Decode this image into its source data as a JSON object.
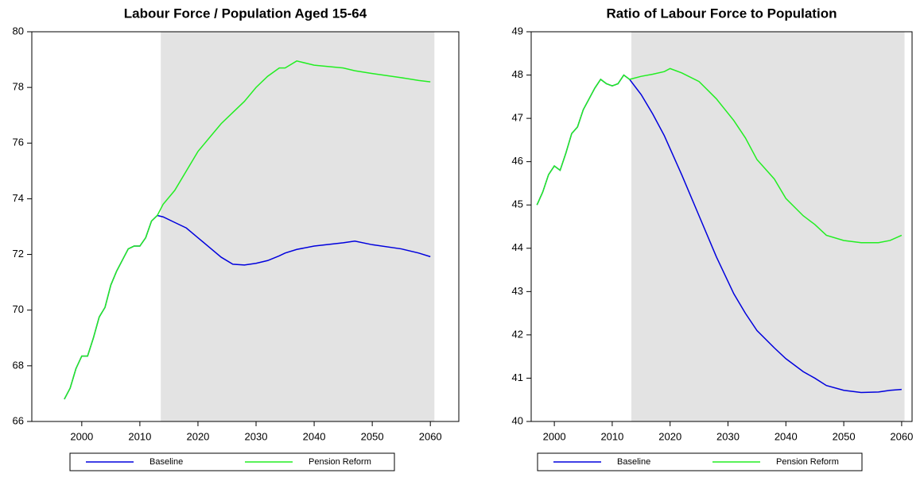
{
  "chart_data": [
    {
      "type": "line",
      "title": "Labour Force / Population Aged 15-64",
      "x": [
        1997,
        1998,
        1999,
        2000,
        2001,
        2002,
        2003,
        2004,
        2005,
        2006,
        2007,
        2008,
        2009,
        2010,
        2011,
        2012,
        2013,
        2014,
        2016,
        2018,
        2020,
        2022,
        2024,
        2026,
        2028,
        2030,
        2032,
        2034,
        2035,
        2037,
        2040,
        2045,
        2047,
        2050,
        2055,
        2058,
        2060
      ],
      "series": [
        {
          "name": "Baseline",
          "color": "#0000dd",
          "values": [
            66.8,
            67.2,
            67.9,
            68.35,
            68.35,
            69.0,
            69.75,
            70.1,
            70.9,
            71.4,
            71.8,
            72.2,
            72.3,
            72.3,
            72.6,
            73.2,
            73.4,
            73.35,
            73.15,
            72.95,
            72.6,
            72.25,
            71.9,
            71.65,
            71.62,
            71.68,
            71.78,
            71.95,
            72.05,
            72.18,
            72.3,
            72.42,
            72.48,
            72.35,
            72.2,
            72.05,
            71.92
          ]
        },
        {
          "name": "Pension Reform",
          "color": "#22ee22",
          "values": [
            66.8,
            67.2,
            67.9,
            68.35,
            68.35,
            69.0,
            69.75,
            70.1,
            70.9,
            71.4,
            71.8,
            72.2,
            72.3,
            72.3,
            72.6,
            73.2,
            73.4,
            73.8,
            74.3,
            75.0,
            75.7,
            76.2,
            76.7,
            77.1,
            77.5,
            78.0,
            78.4,
            78.7,
            78.7,
            78.95,
            78.8,
            78.7,
            78.6,
            78.5,
            78.35,
            78.25,
            78.2
          ]
        }
      ],
      "xlim": [
        1991.4,
        2064.9
      ],
      "xticks": [
        2000,
        2010,
        2020,
        2030,
        2040,
        2050,
        2060
      ],
      "ylim": [
        66,
        80
      ],
      "yticks": [
        66,
        68,
        70,
        72,
        74,
        76,
        78,
        80
      ],
      "shade": [
        2013.6,
        2060.7
      ],
      "shade_color": "#e3e3e3",
      "legend": "bottom"
    },
    {
      "type": "line",
      "title": "Ratio of Labour Force to Population",
      "x": [
        1997,
        1998,
        1999,
        2000,
        2001,
        2002,
        2003,
        2004,
        2005,
        2006,
        2007,
        2008,
        2009,
        2010,
        2011,
        2012,
        2013,
        2015,
        2017,
        2019,
        2020,
        2022,
        2025,
        2028,
        2031,
        2033,
        2035,
        2038,
        2040,
        2043,
        2045,
        2047,
        2050,
        2053,
        2056,
        2058,
        2060
      ],
      "series": [
        {
          "name": "Baseline",
          "color": "#0000dd",
          "values": [
            45.0,
            45.3,
            45.7,
            45.9,
            45.8,
            46.2,
            46.65,
            46.8,
            47.2,
            47.45,
            47.7,
            47.9,
            47.8,
            47.75,
            47.8,
            48.0,
            47.9,
            47.55,
            47.1,
            46.6,
            46.3,
            45.7,
            44.75,
            43.8,
            42.95,
            42.5,
            42.1,
            41.7,
            41.45,
            41.15,
            41.0,
            40.83,
            40.72,
            40.67,
            40.68,
            40.72,
            40.74
          ]
        },
        {
          "name": "Pension Reform",
          "color": "#22ee22",
          "values": [
            45.0,
            45.3,
            45.7,
            45.9,
            45.8,
            46.2,
            46.65,
            46.8,
            47.2,
            47.45,
            47.7,
            47.9,
            47.8,
            47.75,
            47.8,
            48.0,
            47.9,
            47.97,
            48.02,
            48.08,
            48.15,
            48.05,
            47.85,
            47.45,
            46.95,
            46.55,
            46.05,
            45.6,
            45.15,
            44.75,
            44.55,
            44.3,
            44.18,
            44.13,
            44.13,
            44.18,
            44.3
          ]
        }
      ],
      "xlim": [
        1996.0,
        2061.8
      ],
      "xticks": [
        2000,
        2010,
        2020,
        2030,
        2040,
        2050,
        2060
      ],
      "ylim": [
        40,
        49
      ],
      "yticks": [
        40,
        41,
        42,
        43,
        44,
        45,
        46,
        47,
        48,
        49
      ],
      "shade": [
        2013.3,
        2060.5
      ],
      "shade_color": "#e3e3e3",
      "legend": "bottom"
    }
  ]
}
